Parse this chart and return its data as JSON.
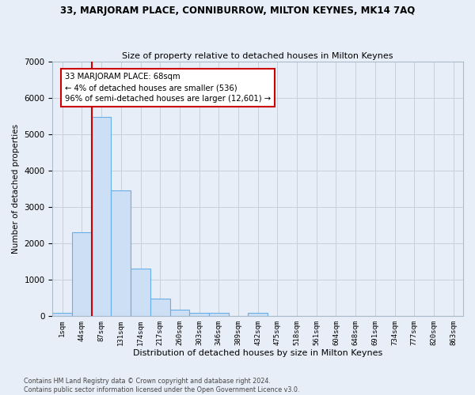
{
  "title": "33, MARJORAM PLACE, CONNIBURROW, MILTON KEYNES, MK14 7AQ",
  "subtitle": "Size of property relative to detached houses in Milton Keynes",
  "xlabel": "Distribution of detached houses by size in Milton Keynes",
  "ylabel": "Number of detached properties",
  "footer_line1": "Contains HM Land Registry data © Crown copyright and database right 2024.",
  "footer_line2": "Contains public sector information licensed under the Open Government Licence v3.0.",
  "categories": [
    "1sqm",
    "44sqm",
    "87sqm",
    "131sqm",
    "174sqm",
    "217sqm",
    "260sqm",
    "303sqm",
    "346sqm",
    "389sqm",
    "432sqm",
    "475sqm",
    "518sqm",
    "561sqm",
    "604sqm",
    "648sqm",
    "691sqm",
    "734sqm",
    "777sqm",
    "820sqm",
    "863sqm"
  ],
  "values": [
    75,
    2300,
    5480,
    3460,
    1310,
    480,
    175,
    90,
    75,
    0,
    75,
    0,
    0,
    0,
    0,
    0,
    0,
    0,
    0,
    0,
    0
  ],
  "bar_color": "#ccdff5",
  "bar_edge_color": "#6aaee8",
  "bar_edge_width": 0.8,
  "vline_x": 1.5,
  "vline_color": "#cc0000",
  "annotation_text": "33 MARJORAM PLACE: 68sqm\n← 4% of detached houses are smaller (536)\n96% of semi-detached houses are larger (12,601) →",
  "annotation_box_color": "#ffffff",
  "annotation_box_edge_color": "#cc0000",
  "grid_color": "#c8d0dc",
  "bg_color": "#e8eef8",
  "fig_bg_color": "#e8eef8",
  "ylim": [
    0,
    7000
  ],
  "yticks": [
    0,
    1000,
    2000,
    3000,
    4000,
    5000,
    6000,
    7000
  ],
  "figsize": [
    6.0,
    5.0
  ],
  "dpi": 100
}
